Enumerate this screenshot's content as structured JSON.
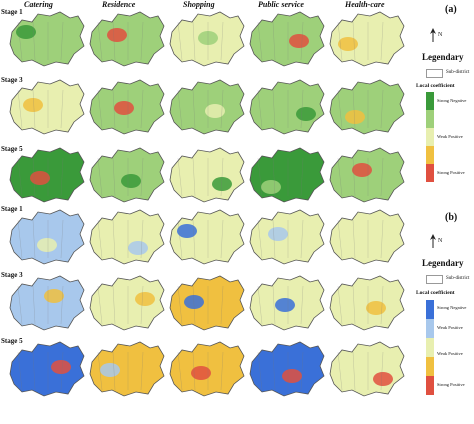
{
  "columns": [
    "Catering",
    "Residence",
    "Shopping",
    "Public service",
    "Health-care"
  ],
  "panel_a": {
    "label": "(a)",
    "rows": [
      "Stage 1",
      "Stage 3",
      "Stage 5"
    ],
    "legend": {
      "title": "Legendary",
      "sub": "Sub-district",
      "coef_title": "Local coefficient",
      "items": [
        "Strong Negative",
        "Weak Positive",
        "Strong Positive"
      ],
      "colors": [
        "#3a9a3a",
        "#9ed07a",
        "#e8efb0",
        "#f0c040",
        "#e05040"
      ]
    }
  },
  "panel_b": {
    "label": "(b)",
    "rows": [
      "Stage 1",
      "Stage 3",
      "Stage 5"
    ],
    "legend": {
      "title": "Legendary",
      "sub": "Sub-district",
      "coef_title": "Local coefficient",
      "items": [
        "Strong Negative",
        "Weak Positive",
        "Weak Positive",
        "Strong Positive"
      ],
      "colors": [
        "#3a70d8",
        "#a8c8ec",
        "#e8efb0",
        "#f0c040",
        "#e05040"
      ]
    }
  },
  "north": "N"
}
